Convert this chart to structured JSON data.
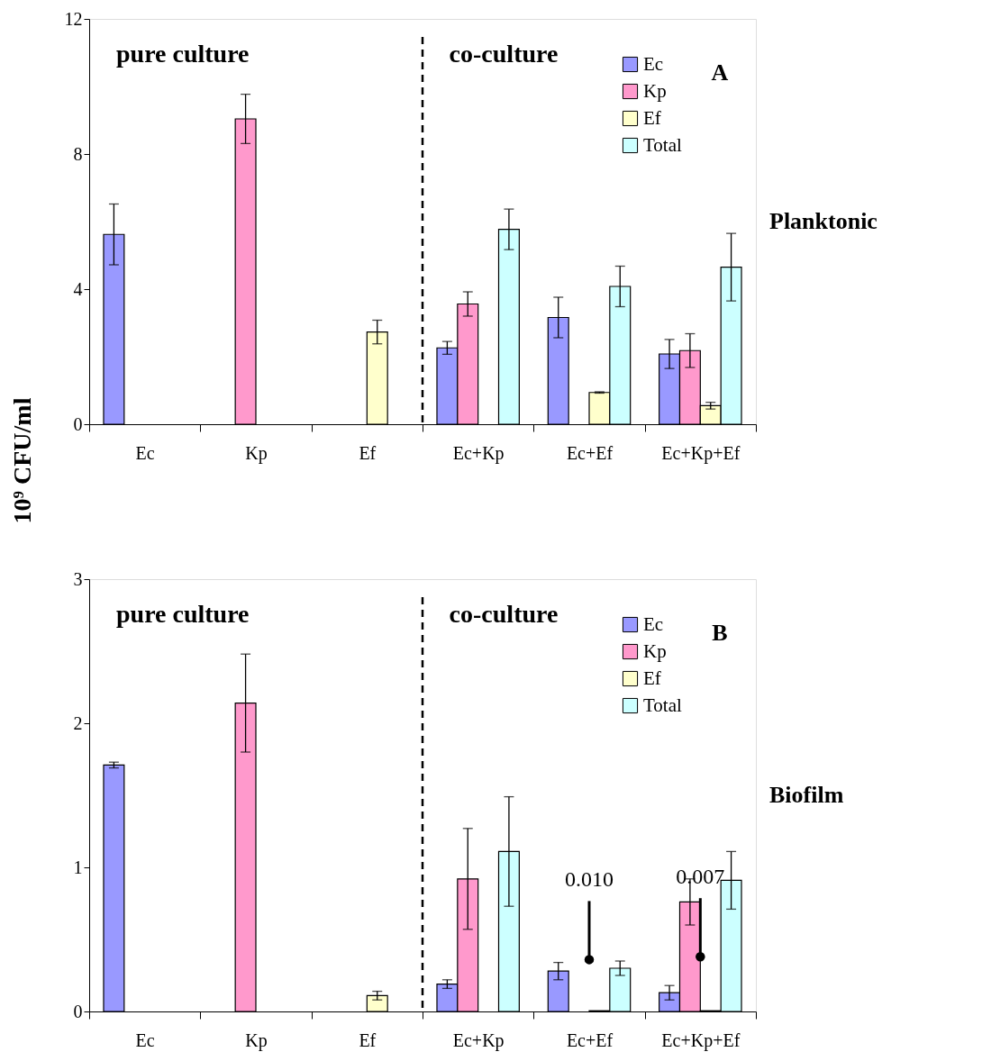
{
  "chart_data": [
    {
      "type": "bar",
      "ylabel": "10⁹ CFU/ml",
      "categories": [
        "Ec",
        "Kp",
        "Ef",
        "Ec+Kp",
        "Ec+Ef",
        "Ec+Kp+Ef"
      ],
      "series": [
        {
          "name": "Ec",
          "color": "#9999ff",
          "values": [
            5.62,
            null,
            null,
            2.26,
            3.16,
            2.08
          ],
          "errors": [
            0.9,
            null,
            null,
            0.19,
            0.6,
            0.43
          ]
        },
        {
          "name": "Kp",
          "color": "#ff99cc",
          "values": [
            null,
            9.04,
            null,
            3.56,
            null,
            2.18
          ],
          "errors": [
            null,
            0.73,
            null,
            0.36,
            null,
            0.5
          ]
        },
        {
          "name": "Ef",
          "color": "#ffffcc",
          "values": [
            null,
            null,
            2.73,
            null,
            0.94,
            0.55
          ],
          "errors": [
            null,
            null,
            0.35,
            null,
            0.02,
            0.1
          ]
        },
        {
          "name": "Total",
          "color": "#ccffff",
          "values": [
            null,
            null,
            null,
            5.77,
            4.08,
            4.65
          ],
          "errors": [
            null,
            null,
            null,
            0.6,
            0.6,
            1.0
          ]
        }
      ],
      "ylim": [
        0,
        12
      ],
      "yticks": [
        0,
        4,
        8,
        12
      ],
      "grid": false,
      "legend": "top right",
      "annotations": [
        "pure culture",
        "co-culture",
        "A",
        "Planktonic"
      ]
    },
    {
      "type": "bar",
      "categories": [
        "Ec",
        "Kp",
        "Ef",
        "Ec+Kp",
        "Ec+Ef",
        "Ec+Kp+Ef"
      ],
      "series": [
        {
          "name": "Ec",
          "color": "#9999ff",
          "values": [
            1.71,
            null,
            null,
            0.19,
            0.28,
            0.13
          ],
          "errors": [
            0.02,
            null,
            null,
            0.03,
            0.06,
            0.05
          ]
        },
        {
          "name": "Kp",
          "color": "#ff99cc",
          "values": [
            null,
            2.14,
            null,
            0.92,
            null,
            0.76
          ],
          "errors": [
            null,
            0.34,
            null,
            0.35,
            null,
            0.16
          ]
        },
        {
          "name": "Ef",
          "color": "#ffffcc",
          "values": [
            null,
            null,
            0.11,
            null,
            0.005,
            0.005
          ],
          "errors": [
            null,
            null,
            0.03,
            null,
            null,
            null
          ]
        },
        {
          "name": "Total",
          "color": "#ccffff",
          "values": [
            null,
            null,
            null,
            1.11,
            0.3,
            0.91
          ],
          "errors": [
            null,
            null,
            null,
            0.38,
            0.05,
            0.2
          ]
        }
      ],
      "ylim": [
        0,
        3
      ],
      "yticks": [
        0,
        1,
        2,
        3
      ],
      "grid": false,
      "legend": "top right",
      "annotations": [
        "pure culture",
        "co-culture",
        "B",
        "Biofilm",
        {
          "text": "0.010",
          "x": "Ec+Ef",
          "y": 0.36
        },
        {
          "text": "0.007",
          "x": "Ec+Kp+Ef",
          "y": 0.38
        }
      ]
    }
  ]
}
